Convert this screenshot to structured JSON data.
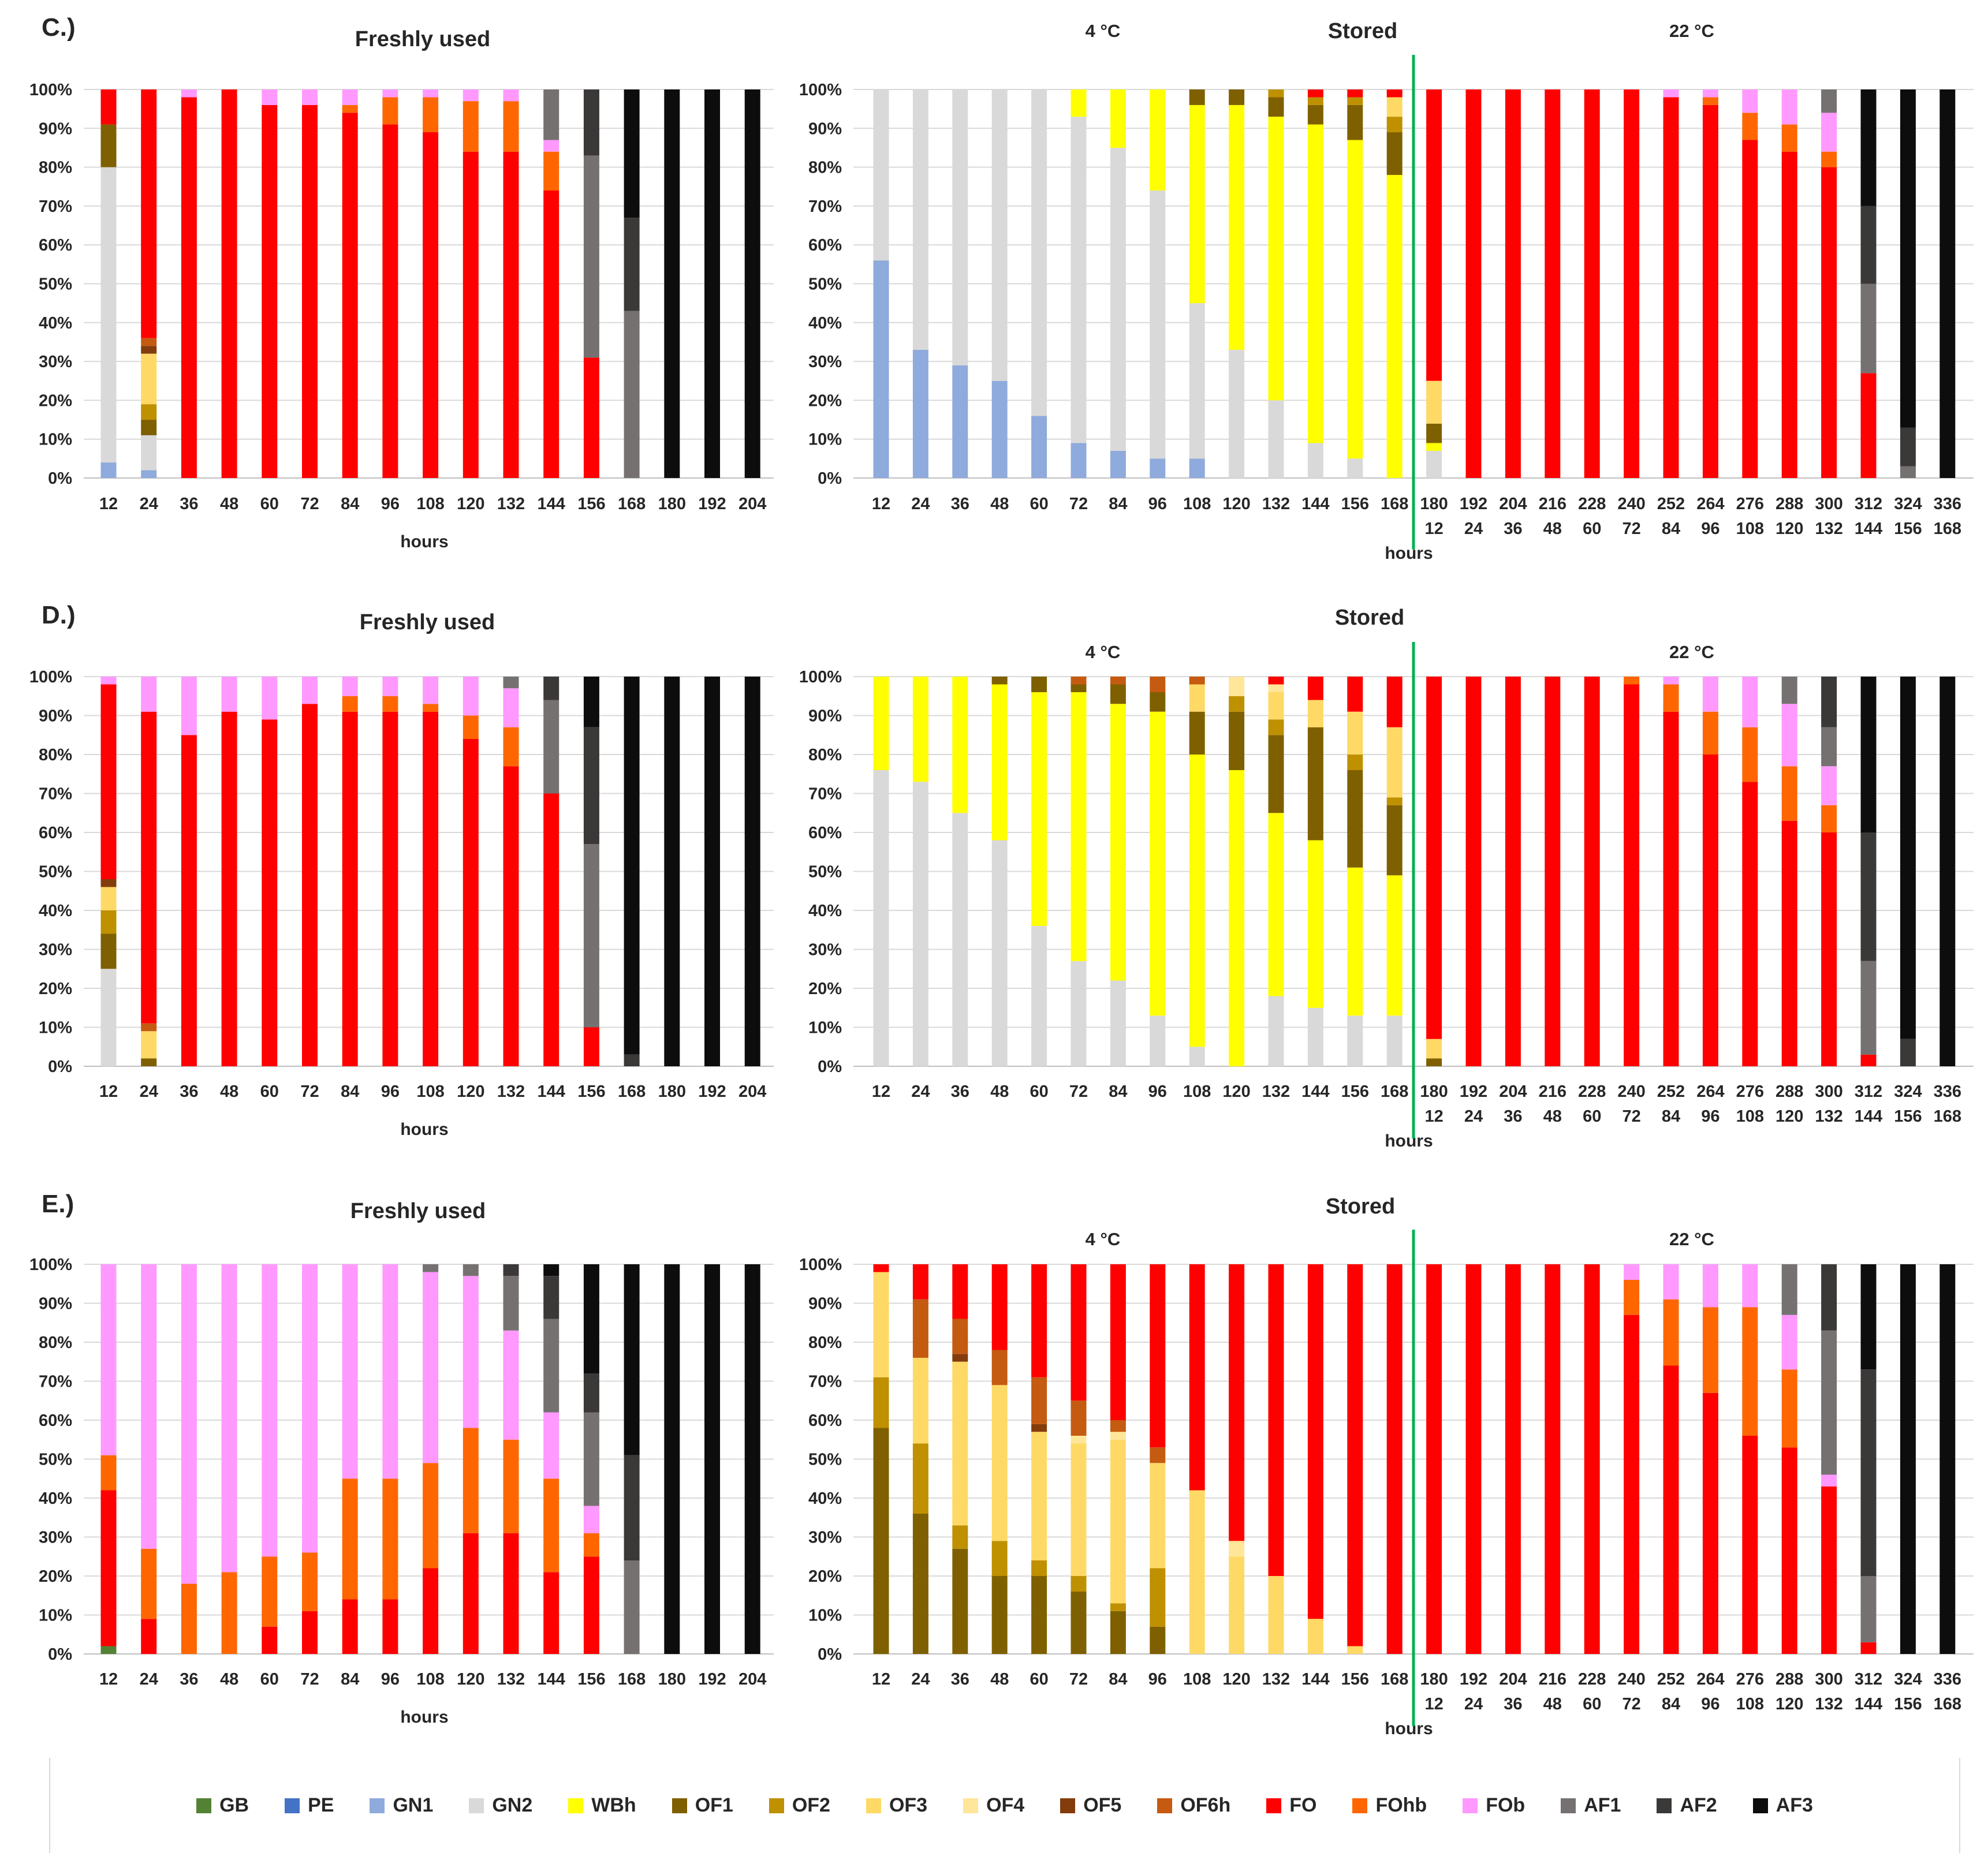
{
  "categories": {
    "GB": {
      "label": "GB",
      "color": "#548235"
    },
    "PE": {
      "label": "PE",
      "color": "#4472c4"
    },
    "GN1": {
      "label": "GN1",
      "color": "#8faadc"
    },
    "GN2": {
      "label": "GN2",
      "color": "#d9d9d9"
    },
    "WBh": {
      "label": "WBh",
      "color": "#ffff00"
    },
    "OF1": {
      "label": "OF1",
      "color": "#7f6000"
    },
    "OF2": {
      "label": "OF2",
      "color": "#bf9000"
    },
    "OF3": {
      "label": "OF3",
      "color": "#ffd966"
    },
    "OF4": {
      "label": "OF4",
      "color": "#ffe699"
    },
    "OF5": {
      "label": "OF5",
      "color": "#843c0c"
    },
    "OF6h": {
      "label": "OF6h",
      "color": "#c55a11"
    },
    "FO": {
      "label": "FO",
      "color": "#ff0000"
    },
    "FOhb": {
      "label": "FOhb",
      "color": "#ff6600"
    },
    "FOb": {
      "label": "FOb",
      "color": "#ff99ff"
    },
    "AF1": {
      "label": "AF1",
      "color": "#767171"
    },
    "AF2": {
      "label": "AF2",
      "color": "#3b3838"
    },
    "AF3": {
      "label": "AF3",
      "color": "#0d0d0d"
    }
  },
  "legend_order": [
    "GB",
    "PE",
    "GN1",
    "GN2",
    "WBh",
    "OF1",
    "OF2",
    "OF3",
    "OF4",
    "OF5",
    "OF6h",
    "FO",
    "FOhb",
    "FOb",
    "AF1",
    "AF2",
    "AF3"
  ],
  "panels": [
    {
      "label": "C.)",
      "fresh_title": "Freshly used",
      "stored_title": "Stored"
    },
    {
      "label": "D.)",
      "fresh_title": "Freshly used",
      "stored_title": "Stored"
    },
    {
      "label": "E.)",
      "fresh_title": "Freshly used",
      "stored_title": "Stored"
    }
  ],
  "temp_labels": {
    "cold": "4 °C",
    "warm": "22 °C"
  },
  "axis": {
    "xlabel": "hours",
    "yticks": [
      "0%",
      "10%",
      "20%",
      "30%",
      "40%",
      "50%",
      "60%",
      "70%",
      "80%",
      "90%",
      "100%"
    ]
  },
  "chart_data": [
    {
      "type": "bar",
      "stacked": true,
      "panel": "C.)",
      "title": "Freshly used",
      "xlabel": "hours",
      "ylim": [
        0,
        100
      ],
      "categories": [
        "12",
        "24",
        "36",
        "48",
        "60",
        "72",
        "84",
        "96",
        "108",
        "120",
        "132",
        "144",
        "156",
        "168",
        "180",
        "192",
        "204"
      ],
      "bars": [
        {
          "GN1": 4,
          "GN2": 76,
          "OF1": 11,
          "FO": 9
        },
        {
          "GN1": 2,
          "GN2": 9,
          "OF1": 4,
          "OF2": 4,
          "OF3": 13,
          "OF5": 2,
          "OF6h": 2,
          "FO": 64
        },
        {
          "FO": 98,
          "FOb": 2
        },
        {
          "FO": 100
        },
        {
          "FO": 96,
          "FOb": 4
        },
        {
          "FO": 96,
          "FOb": 4
        },
        {
          "FO": 94,
          "FOhb": 2,
          "FOb": 4
        },
        {
          "FO": 91,
          "FOhb": 7,
          "FOb": 2
        },
        {
          "FO": 89,
          "FOhb": 9,
          "FOb": 2
        },
        {
          "FO": 84,
          "FOhb": 13,
          "FOb": 3
        },
        {
          "FO": 84,
          "FOhb": 13,
          "FOb": 3
        },
        {
          "FO": 74,
          "FOhb": 10,
          "FOb": 3,
          "AF1": 13
        },
        {
          "FO": 31,
          "AF1": 52,
          "AF2": 17
        },
        {
          "AF1": 43,
          "AF2": 24,
          "AF3": 33
        },
        {
          "AF3": 100
        },
        {
          "AF3": 100
        },
        {
          "AF3": 100
        }
      ]
    },
    {
      "type": "bar",
      "stacked": true,
      "panel": "C.)",
      "title": "Stored",
      "subtitle_left": "4 °C",
      "subtitle_right": "22 °C",
      "xlabel": "hours",
      "ylim": [
        0,
        100
      ],
      "categories": [
        "12",
        "24",
        "36",
        "48",
        "60",
        "72",
        "84",
        "96",
        "108",
        "120",
        "132",
        "144",
        "156",
        "168",
        "180",
        "192",
        "204",
        "216",
        "228",
        "240",
        "252",
        "264",
        "276",
        "288",
        "300",
        "312",
        "324",
        "336"
      ],
      "categories_secondary": [
        "",
        "",
        "",
        "",
        "",
        "",
        "",
        "",
        "",
        "",
        "",
        "",
        "",
        "",
        "12",
        "24",
        "36",
        "48",
        "60",
        "72",
        "84",
        "96",
        "108",
        "120",
        "132",
        "144",
        "156",
        "168"
      ],
      "bars": [
        {
          "GN1": 56,
          "GN2": 44
        },
        {
          "GN1": 33,
          "GN2": 67
        },
        {
          "GN1": 29,
          "GN2": 71
        },
        {
          "GN1": 25,
          "GN2": 75
        },
        {
          "GN1": 16,
          "GN2": 84
        },
        {
          "GN1": 9,
          "GN2": 84,
          "WBh": 7
        },
        {
          "GN1": 7,
          "GN2": 78,
          "WBh": 15
        },
        {
          "GN1": 5,
          "GN2": 69,
          "WBh": 26
        },
        {
          "GN1": 5,
          "GN2": 40,
          "WBh": 51,
          "OF1": 4
        },
        {
          "GN2": 33,
          "WBh": 63,
          "OF1": 4
        },
        {
          "GN2": 20,
          "WBh": 73,
          "OF1": 5,
          "OF2": 2
        },
        {
          "GN2": 9,
          "WBh": 82,
          "OF1": 5,
          "OF2": 2,
          "FO": 2
        },
        {
          "GN2": 5,
          "WBh": 82,
          "OF1": 9,
          "OF2": 2,
          "FO": 2
        },
        {
          "WBh": 78,
          "OF1": 11,
          "OF2": 4,
          "OF3": 5,
          "FO": 2
        },
        {
          "GN2": 7,
          "WBh": 2,
          "OF1": 5,
          "OF3": 11,
          "FO": 75
        },
        {
          "FO": 100
        },
        {
          "FO": 100
        },
        {
          "FO": 100
        },
        {
          "FO": 100
        },
        {
          "FO": 100
        },
        {
          "FO": 98,
          "FOb": 2
        },
        {
          "FO": 96,
          "FOhb": 2,
          "FOb": 2
        },
        {
          "FO": 87,
          "FOhb": 7,
          "FOb": 6
        },
        {
          "FO": 84,
          "FOhb": 7,
          "FOb": 9
        },
        {
          "FO": 80,
          "FOhb": 4,
          "FOb": 10,
          "AF1": 6
        },
        {
          "FO": 27,
          "AF1": 23,
          "AF2": 20,
          "AF3": 30
        },
        {
          "AF1": 3,
          "AF2": 10,
          "AF3": 87
        },
        {
          "AF3": 100
        }
      ]
    },
    {
      "type": "bar",
      "stacked": true,
      "panel": "D.)",
      "title": "Freshly used",
      "xlabel": "hours",
      "ylim": [
        0,
        100
      ],
      "categories": [
        "12",
        "24",
        "36",
        "48",
        "60",
        "72",
        "84",
        "96",
        "108",
        "120",
        "132",
        "144",
        "156",
        "168",
        "180",
        "192",
        "204"
      ],
      "bars": [
        {
          "GN2": 25,
          "OF1": 9,
          "OF2": 6,
          "OF3": 6,
          "OF5": 2,
          "FO": 50,
          "FOb": 2
        },
        {
          "OF1": 2,
          "OF3": 7,
          "OF6h": 2,
          "FO": 80,
          "FOb": 9
        },
        {
          "FO": 85,
          "FOb": 15
        },
        {
          "FO": 91,
          "FOb": 9
        },
        {
          "FO": 89,
          "FOb": 11
        },
        {
          "FO": 93,
          "FOb": 7
        },
        {
          "FO": 91,
          "FOhb": 4,
          "FOb": 5
        },
        {
          "FO": 91,
          "FOhb": 4,
          "FOb": 5
        },
        {
          "FO": 91,
          "FOhb": 2,
          "FOb": 7
        },
        {
          "FO": 84,
          "FOhb": 6,
          "FOb": 10
        },
        {
          "FO": 77,
          "FOhb": 10,
          "FOb": 10,
          "AF1": 3
        },
        {
          "FO": 70,
          "AF1": 24,
          "AF2": 6
        },
        {
          "FO": 10,
          "AF1": 47,
          "AF2": 30,
          "AF3": 13
        },
        {
          "AF2": 3,
          "AF3": 97
        },
        {
          "AF3": 100
        },
        {
          "AF3": 100
        },
        {
          "AF3": 100
        }
      ]
    },
    {
      "type": "bar",
      "stacked": true,
      "panel": "D.)",
      "title": "Stored",
      "subtitle_left": "4 °C",
      "subtitle_right": "22 °C",
      "xlabel": "hours",
      "ylim": [
        0,
        100
      ],
      "categories": [
        "12",
        "24",
        "36",
        "48",
        "60",
        "72",
        "84",
        "96",
        "108",
        "120",
        "132",
        "144",
        "156",
        "168",
        "180",
        "192",
        "204",
        "216",
        "228",
        "240",
        "252",
        "264",
        "276",
        "288",
        "300",
        "312",
        "324",
        "336"
      ],
      "categories_secondary": [
        "",
        "",
        "",
        "",
        "",
        "",
        "",
        "",
        "",
        "",
        "",
        "",
        "",
        "",
        "12",
        "24",
        "36",
        "48",
        "60",
        "72",
        "84",
        "96",
        "108",
        "120",
        "132",
        "144",
        "156",
        "168"
      ],
      "bars": [
        {
          "GN2": 76,
          "WBh": 24
        },
        {
          "GN2": 73,
          "WBh": 27
        },
        {
          "GN2": 65,
          "WBh": 35
        },
        {
          "GN2": 58,
          "WBh": 40,
          "OF1": 2
        },
        {
          "GN2": 36,
          "WBh": 60,
          "OF1": 4
        },
        {
          "GN2": 27,
          "WBh": 69,
          "OF1": 2,
          "OF6h": 2
        },
        {
          "GN2": 22,
          "WBh": 71,
          "OF1": 5,
          "OF6h": 2
        },
        {
          "GN2": 13,
          "WBh": 78,
          "OF1": 5,
          "OF6h": 4
        },
        {
          "GN2": 5,
          "WBh": 75,
          "OF1": 11,
          "OF3": 7,
          "OF6h": 2
        },
        {
          "WBh": 76,
          "OF1": 15,
          "OF2": 4,
          "OF4": 5
        },
        {
          "GN2": 18,
          "WBh": 47,
          "OF1": 20,
          "OF2": 4,
          "OF3": 7,
          "OF4": 2,
          "FO": 2
        },
        {
          "GN2": 15,
          "WBh": 43,
          "OF1": 29,
          "OF3": 7,
          "FO": 6
        },
        {
          "GN2": 13,
          "WBh": 38,
          "OF1": 25,
          "OF2": 4,
          "OF3": 11,
          "FO": 9
        },
        {
          "GN2": 13,
          "WBh": 36,
          "OF1": 18,
          "OF2": 2,
          "OF3": 18,
          "FO": 13
        },
        {
          "OF3": 5,
          "OF1": 2,
          "FO": 93
        },
        {
          "FO": 100
        },
        {
          "FO": 100
        },
        {
          "FO": 100
        },
        {
          "FO": 100
        },
        {
          "FO": 98,
          "FOhb": 2
        },
        {
          "FO": 91,
          "FOhb": 7,
          "FOb": 2
        },
        {
          "FO": 80,
          "FOhb": 11,
          "FOb": 9
        },
        {
          "FO": 73,
          "FOhb": 14,
          "FOb": 13
        },
        {
          "FO": 63,
          "FOhb": 14,
          "FOb": 16,
          "AF1": 7
        },
        {
          "FO": 60,
          "FOhb": 7,
          "FOb": 10,
          "AF1": 10,
          "AF2": 13
        },
        {
          "FO": 3,
          "AF1": 24,
          "AF2": 33,
          "AF3": 40
        },
        {
          "AF2": 7,
          "AF3": 93
        },
        {
          "AF3": 100
        }
      ]
    },
    {
      "type": "bar",
      "stacked": true,
      "panel": "E.)",
      "title": "Freshly used",
      "xlabel": "hours",
      "ylim": [
        0,
        100
      ],
      "categories": [
        "12",
        "24",
        "36",
        "48",
        "60",
        "72",
        "84",
        "96",
        "108",
        "120",
        "132",
        "144",
        "156",
        "168",
        "180",
        "192",
        "204"
      ],
      "bars": [
        {
          "GB": 2,
          "FO": 40,
          "FOhb": 9,
          "FOb": 49
        },
        {
          "FO": 9,
          "FOhb": 18,
          "FOb": 73
        },
        {
          "FOhb": 18,
          "FOb": 82
        },
        {
          "FOhb": 21,
          "FOb": 79
        },
        {
          "FO": 7,
          "FOhb": 18,
          "FOb": 75
        },
        {
          "FO": 11,
          "FOhb": 15,
          "FOb": 74
        },
        {
          "FO": 14,
          "FOhb": 31,
          "FOb": 55
        },
        {
          "FO": 14,
          "FOhb": 31,
          "FOb": 55
        },
        {
          "FO": 22,
          "FOhb": 27,
          "FOb": 49,
          "AF1": 2
        },
        {
          "FO": 31,
          "FOhb": 27,
          "FOb": 39,
          "AF1": 3
        },
        {
          "FO": 31,
          "FOhb": 24,
          "FOb": 28,
          "AF1": 14,
          "AF2": 3
        },
        {
          "FO": 21,
          "FOhb": 24,
          "FOb": 17,
          "AF1": 24,
          "AF2": 11,
          "AF3": 3
        },
        {
          "FO": 25,
          "FOhb": 6,
          "FOb": 7,
          "AF1": 24,
          "AF2": 10,
          "AF3": 28
        },
        {
          "AF1": 24,
          "AF2": 27,
          "AF3": 49
        },
        {
          "AF3": 100
        },
        {
          "AF3": 100
        },
        {
          "AF3": 100
        }
      ]
    },
    {
      "type": "bar",
      "stacked": true,
      "panel": "E.)",
      "title": "Stored",
      "subtitle_left": "4 °C",
      "subtitle_right": "22 °C",
      "xlabel": "hours",
      "ylim": [
        0,
        100
      ],
      "categories": [
        "12",
        "24",
        "36",
        "48",
        "60",
        "72",
        "84",
        "96",
        "108",
        "120",
        "132",
        "144",
        "156",
        "168",
        "180",
        "192",
        "204",
        "216",
        "228",
        "240",
        "252",
        "264",
        "276",
        "288",
        "300",
        "312",
        "324",
        "336"
      ],
      "categories_secondary": [
        "",
        "",
        "",
        "",
        "",
        "",
        "",
        "",
        "",
        "",
        "",
        "",
        "",
        "",
        "12",
        "24",
        "36",
        "48",
        "60",
        "72",
        "84",
        "96",
        "108",
        "120",
        "132",
        "144",
        "156",
        "168"
      ],
      "bars": [
        {
          "OF1": 58,
          "OF2": 13,
          "OF3": 27,
          "FO": 2
        },
        {
          "OF1": 36,
          "OF2": 18,
          "OF3": 22,
          "OF6h": 15,
          "FO": 9
        },
        {
          "OF1": 27,
          "OF2": 6,
          "OF3": 42,
          "OF5": 2,
          "OF6h": 9,
          "FO": 14
        },
        {
          "OF1": 20,
          "OF2": 9,
          "OF3": 40,
          "OF6h": 9,
          "FO": 22
        },
        {
          "OF1": 20,
          "OF2": 4,
          "OF3": 33,
          "OF5": 2,
          "OF6h": 12,
          "FO": 29
        },
        {
          "OF1": 16,
          "OF2": 4,
          "OF3": 34,
          "OF4": 2,
          "OF6h": 9,
          "FO": 35
        },
        {
          "OF1": 11,
          "OF2": 2,
          "OF3": 42,
          "OF4": 2,
          "OF6h": 3,
          "FO": 40
        },
        {
          "OF1": 7,
          "OF2": 15,
          "OF3": 27,
          "OF6h": 4,
          "FO": 47
        },
        {
          "OF3": 42,
          "FO": 58
        },
        {
          "OF3": 25,
          "OF4": 4,
          "FO": 71
        },
        {
          "OF3": 20,
          "FO": 80
        },
        {
          "OF3": 9,
          "FO": 91
        },
        {
          "OF3": 2,
          "FO": 98
        },
        {
          "FO": 100
        },
        {
          "FO": 100
        },
        {
          "FO": 100
        },
        {
          "FO": 100
        },
        {
          "FO": 100
        },
        {
          "FO": 100
        },
        {
          "FO": 87,
          "FOhb": 9,
          "FOb": 4
        },
        {
          "FO": 74,
          "FOhb": 17,
          "FOb": 9
        },
        {
          "FO": 67,
          "FOhb": 22,
          "FOb": 11
        },
        {
          "FO": 56,
          "FOhb": 33,
          "FOb": 11
        },
        {
          "FO": 53,
          "FOhb": 20,
          "FOb": 14,
          "AF1": 13
        },
        {
          "FO": 43,
          "FOb": 3,
          "AF1": 37,
          "AF2": 17
        },
        {
          "FO": 3,
          "AF1": 17,
          "AF2": 53,
          "AF3": 27
        },
        {
          "AF3": 100
        },
        {
          "AF3": 100
        }
      ]
    }
  ]
}
